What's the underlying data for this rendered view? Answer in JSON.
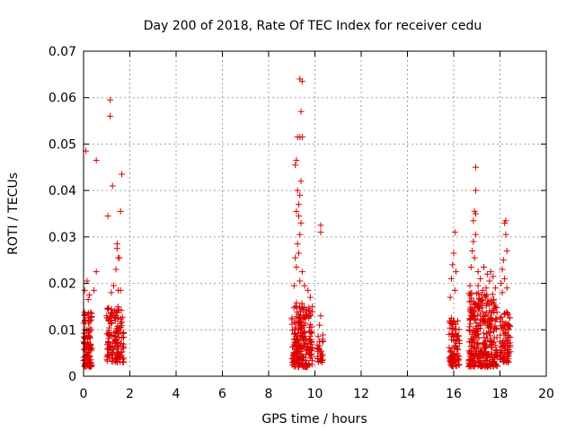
{
  "chart_data": {
    "type": "scatter",
    "title": "Day 200 of 2018, Rate Of TEC Index for receiver cedu",
    "xlabel": "GPS time / hours",
    "ylabel": "ROTI / TECUs",
    "xlim": [
      0,
      20
    ],
    "ylim": [
      0,
      0.07
    ],
    "xticks": [
      0,
      2,
      4,
      6,
      8,
      10,
      12,
      14,
      16,
      18,
      20
    ],
    "yticks": [
      0,
      0.01,
      0.02,
      0.03,
      0.04,
      0.05,
      0.06,
      0.07
    ],
    "xtick_labels": [
      "0",
      "2",
      "4",
      "6",
      "8",
      "10",
      "12",
      "14",
      "16",
      "18",
      "20"
    ],
    "ytick_labels": [
      "0",
      "0.01",
      "0.02",
      "0.03",
      "0.04",
      "0.05",
      "0.06",
      "0.07"
    ],
    "grid": true,
    "marker": "+",
    "marker_color": "#dd0000",
    "series": [
      {
        "name": "ROTI",
        "clusters": [
          {
            "x_range": [
              0.0,
              0.35
            ],
            "y_range": [
              0.002,
              0.014
            ],
            "count": 110
          },
          {
            "x_range": [
              1.0,
              1.75
            ],
            "y_range": [
              0.003,
              0.015
            ],
            "count": 140
          },
          {
            "x_range": [
              9.0,
              9.9
            ],
            "y_range": [
              0.002,
              0.016
            ],
            "count": 230
          },
          {
            "x_range": [
              10.1,
              10.35
            ],
            "y_range": [
              0.003,
              0.009
            ],
            "count": 30
          },
          {
            "x_range": [
              15.8,
              16.25
            ],
            "y_range": [
              0.002,
              0.012
            ],
            "count": 90
          },
          {
            "x_range": [
              16.65,
              17.9
            ],
            "y_range": [
              0.002,
              0.018
            ],
            "count": 320
          },
          {
            "x_range": [
              18.0,
              18.45
            ],
            "y_range": [
              0.003,
              0.014
            ],
            "count": 90
          }
        ],
        "points": [
          [
            0.1,
            0.0485
          ],
          [
            0.55,
            0.0465
          ],
          [
            0.55,
            0.0225
          ],
          [
            0.15,
            0.0205
          ],
          [
            0.05,
            0.0185
          ],
          [
            0.25,
            0.0175
          ],
          [
            0.45,
            0.0185
          ],
          [
            0.2,
            0.0165
          ],
          [
            1.15,
            0.0595
          ],
          [
            1.15,
            0.056
          ],
          [
            1.25,
            0.041
          ],
          [
            1.05,
            0.0345
          ],
          [
            1.65,
            0.0435
          ],
          [
            1.6,
            0.0355
          ],
          [
            1.45,
            0.0285
          ],
          [
            1.45,
            0.0275
          ],
          [
            1.5,
            0.0255
          ],
          [
            1.55,
            0.0255
          ],
          [
            1.4,
            0.023
          ],
          [
            1.3,
            0.0195
          ],
          [
            1.2,
            0.018
          ],
          [
            1.6,
            0.0185
          ],
          [
            1.5,
            0.0185
          ],
          [
            9.35,
            0.064
          ],
          [
            9.45,
            0.0635
          ],
          [
            9.4,
            0.057
          ],
          [
            9.25,
            0.0515
          ],
          [
            9.35,
            0.0515
          ],
          [
            9.45,
            0.0515
          ],
          [
            9.2,
            0.0465
          ],
          [
            9.15,
            0.0455
          ],
          [
            9.4,
            0.042
          ],
          [
            9.25,
            0.04
          ],
          [
            9.35,
            0.039
          ],
          [
            9.3,
            0.037
          ],
          [
            9.2,
            0.0355
          ],
          [
            9.3,
            0.0345
          ],
          [
            9.4,
            0.033
          ],
          [
            9.35,
            0.0305
          ],
          [
            9.25,
            0.0285
          ],
          [
            9.3,
            0.0265
          ],
          [
            9.15,
            0.0255
          ],
          [
            9.2,
            0.0235
          ],
          [
            9.45,
            0.0225
          ],
          [
            9.35,
            0.0205
          ],
          [
            9.1,
            0.0195
          ],
          [
            9.7,
            0.0185
          ],
          [
            9.55,
            0.0195
          ],
          [
            9.8,
            0.017
          ],
          [
            10.25,
            0.0325
          ],
          [
            10.25,
            0.031
          ],
          [
            10.25,
            0.013
          ],
          [
            10.2,
            0.011
          ],
          [
            16.05,
            0.031
          ],
          [
            16.0,
            0.0265
          ],
          [
            15.95,
            0.024
          ],
          [
            16.1,
            0.0225
          ],
          [
            15.9,
            0.021
          ],
          [
            16.05,
            0.0185
          ],
          [
            15.85,
            0.017
          ],
          [
            15.9,
            0.0125
          ],
          [
            16.95,
            0.045
          ],
          [
            16.95,
            0.04
          ],
          [
            16.9,
            0.0355
          ],
          [
            16.95,
            0.035
          ],
          [
            16.85,
            0.0335
          ],
          [
            16.95,
            0.0305
          ],
          [
            16.85,
            0.029
          ],
          [
            16.8,
            0.027
          ],
          [
            16.9,
            0.0255
          ],
          [
            16.75,
            0.0235
          ],
          [
            17.05,
            0.0225
          ],
          [
            17.15,
            0.021
          ],
          [
            17.3,
            0.0235
          ],
          [
            17.45,
            0.022
          ],
          [
            17.6,
            0.0225
          ],
          [
            17.7,
            0.0215
          ],
          [
            17.55,
            0.0205
          ],
          [
            17.05,
            0.0195
          ],
          [
            17.4,
            0.019
          ],
          [
            17.8,
            0.019
          ],
          [
            17.25,
            0.0185
          ],
          [
            16.7,
            0.0195
          ],
          [
            18.25,
            0.0335
          ],
          [
            18.2,
            0.033
          ],
          [
            18.25,
            0.0305
          ],
          [
            18.3,
            0.027
          ],
          [
            18.15,
            0.025
          ],
          [
            18.1,
            0.023
          ],
          [
            18.2,
            0.021
          ],
          [
            18.05,
            0.02
          ],
          [
            18.3,
            0.019
          ],
          [
            18.1,
            0.018
          ]
        ]
      }
    ]
  }
}
